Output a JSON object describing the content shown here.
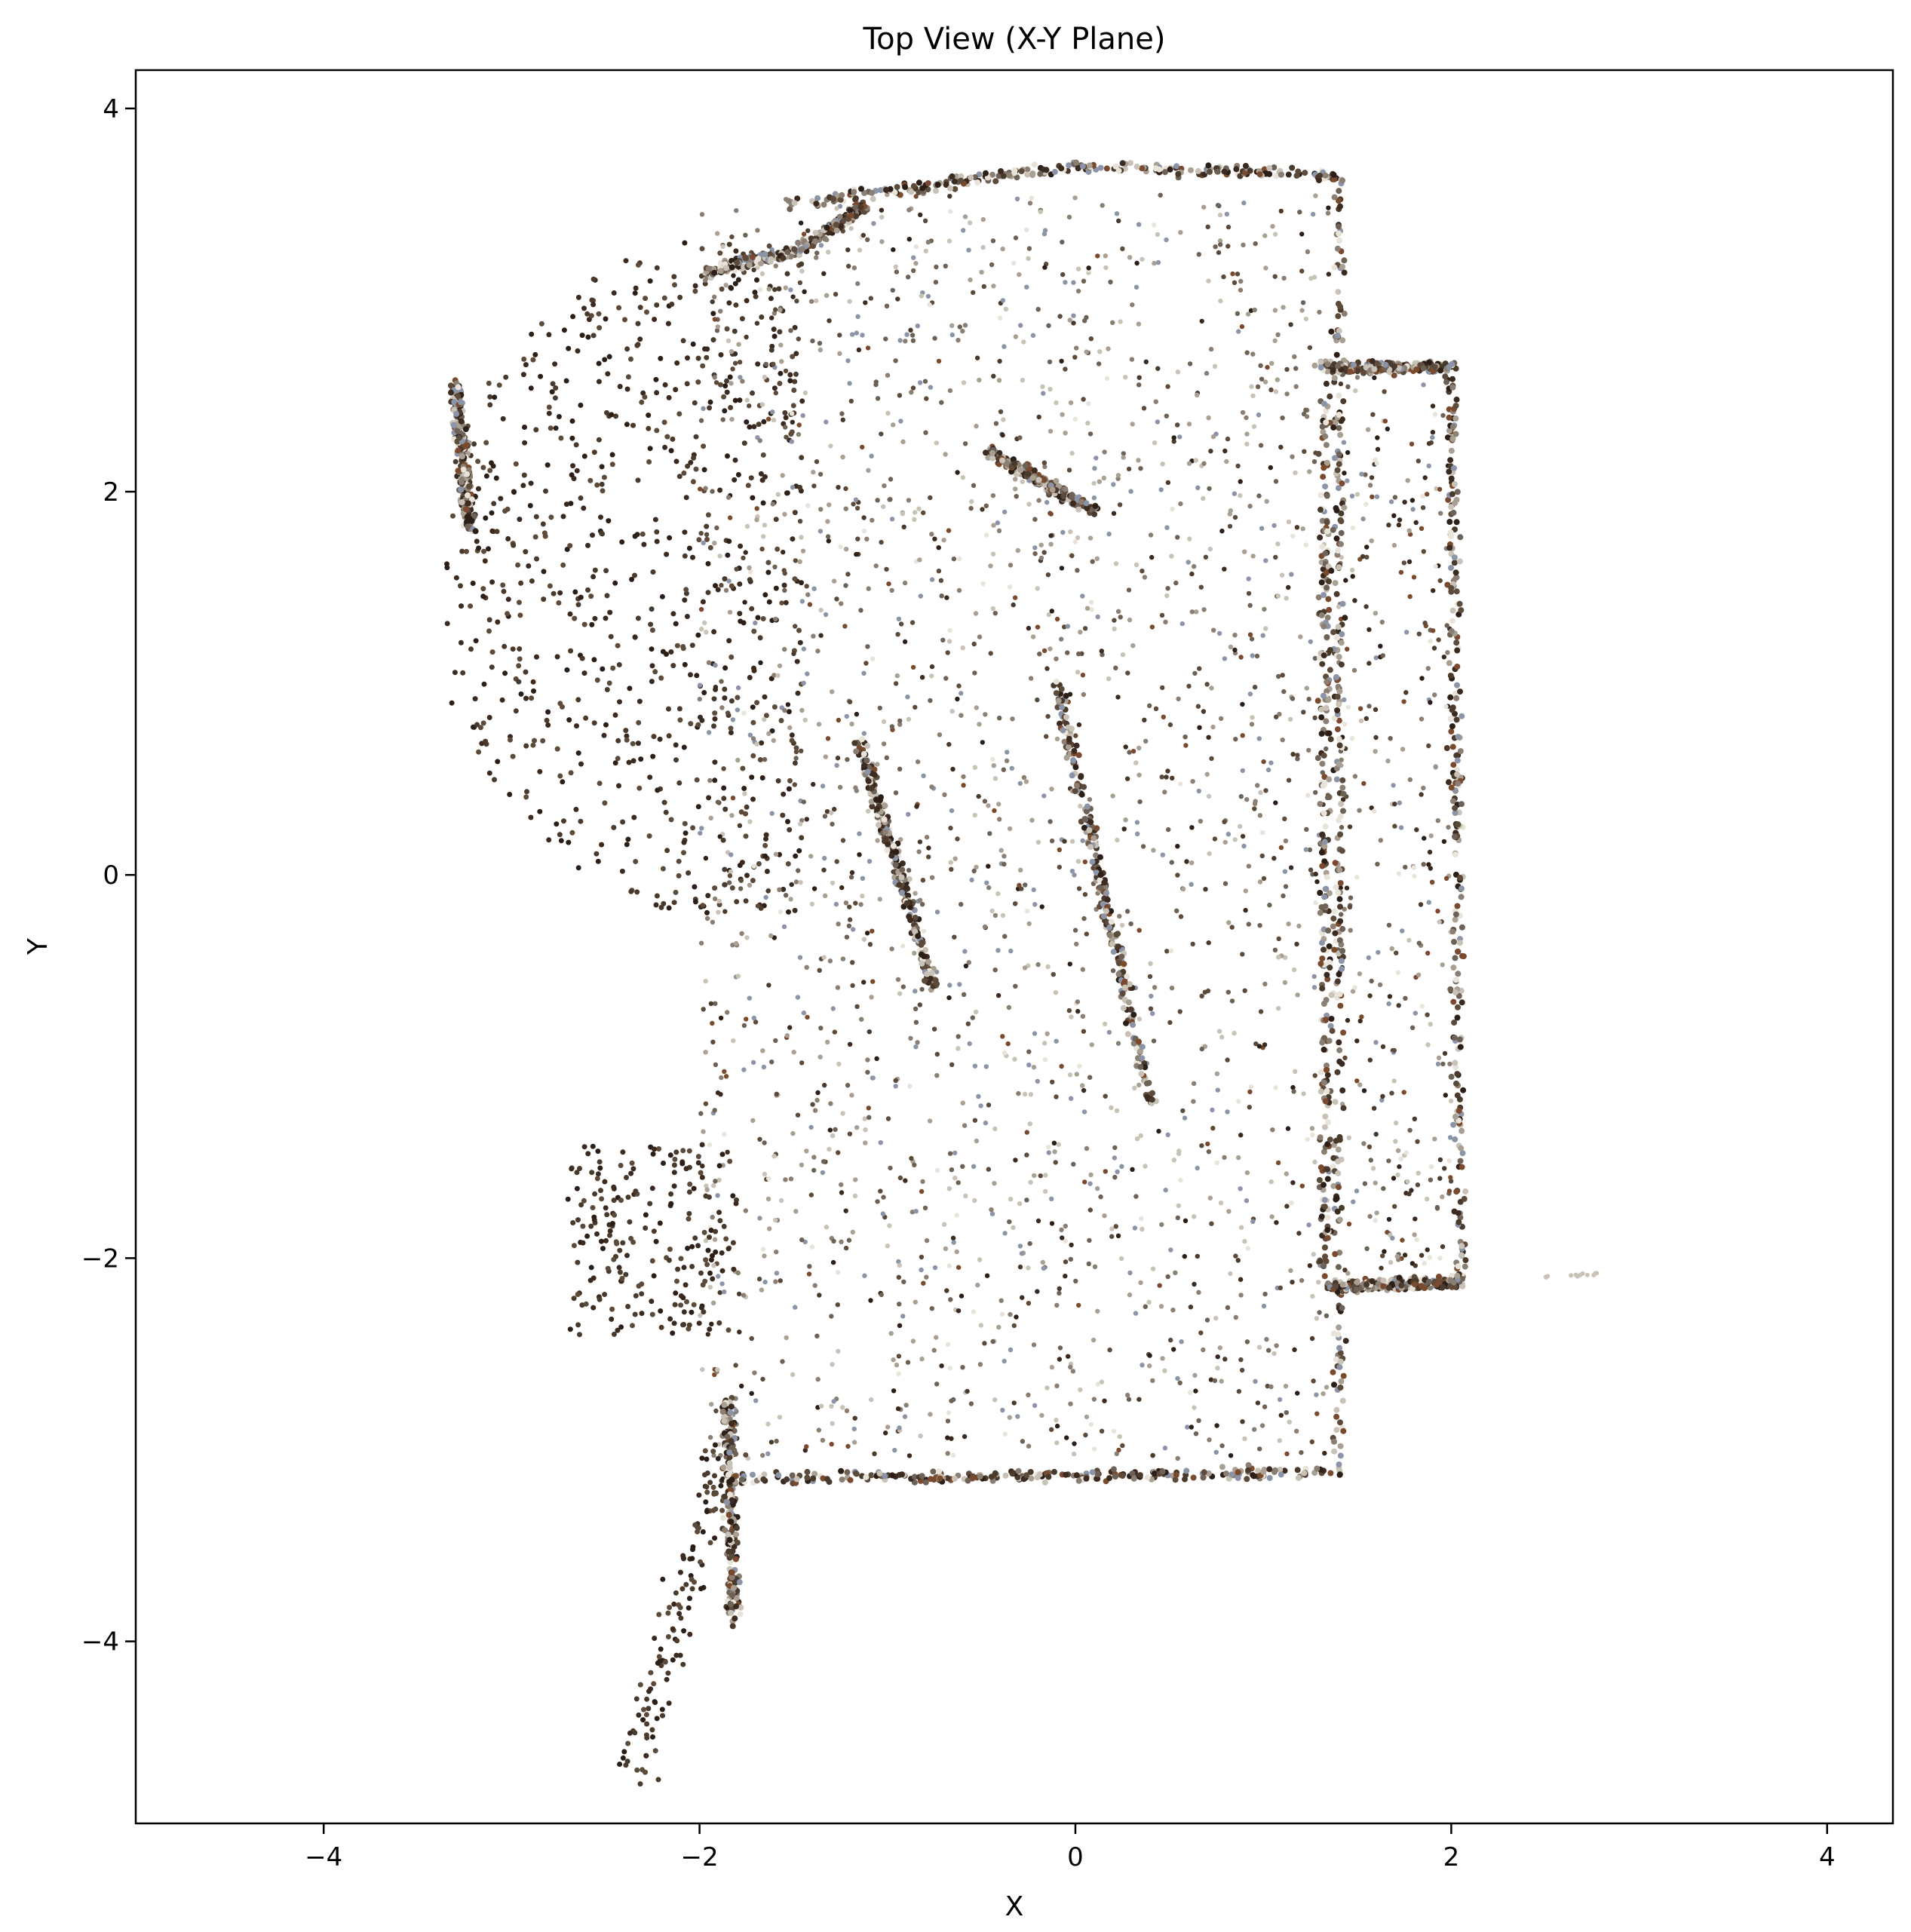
{
  "chart_data": {
    "type": "scatter",
    "title": "Top View (X-Y Plane)",
    "xlabel": "X",
    "ylabel": "Y",
    "xlim": [
      -5.0,
      4.35
    ],
    "ylim": [
      -4.95,
      4.2
    ],
    "xticks": [
      -4,
      -2,
      0,
      2,
      4
    ],
    "yticks": [
      -4,
      -2,
      0,
      2,
      4
    ],
    "xtick_labels": [
      "−4",
      "−2",
      "0",
      "2",
      "4"
    ],
    "ytick_labels": [
      "−4",
      "−2",
      "0",
      "2",
      "4"
    ],
    "grid": false,
    "legend": "none",
    "marker_colors": [
      "#2b1f18",
      "#3b2a20",
      "#4a3a2c",
      "#5c4a3a",
      "#6e6256",
      "#8a7f72",
      "#a99f92",
      "#c9c2b6",
      "#8c94a8",
      "#7a4a2e",
      "#e9e4da"
    ],
    "series": [
      {
        "description": "point cloud projected to X-Y plane",
        "walls": [
          {
            "x": [
              -1.55,
              0.0,
              1.4
            ],
            "y": [
              3.5,
              3.7,
              3.65
            ]
          },
          {
            "x": [
              -1.95,
              -1.5,
              -1.1
            ],
            "y": [
              3.15,
              3.25,
              3.5
            ]
          },
          {
            "x": [
              1.4,
              1.4
            ],
            "y": [
              3.65,
              -3.1
            ]
          },
          {
            "x": [
              -1.85,
              1.4
            ],
            "y": [
              -3.15,
              -3.12
            ]
          },
          {
            "x": [
              -1.85,
              -1.82
            ],
            "y": [
              -2.75,
              -3.9
            ]
          },
          {
            "x": [
              1.3,
              2.0
            ],
            "y": [
              2.65,
              2.65
            ]
          },
          {
            "x": [
              1.33,
              1.33
            ],
            "y": [
              2.6,
              -2.1
            ]
          },
          {
            "x": [
              2.0,
              2.05
            ],
            "y": [
              2.65,
              -2.15
            ]
          },
          {
            "x": [
              1.35,
              2.05
            ],
            "y": [
              -2.15,
              -2.12
            ]
          },
          {
            "x": [
              -3.3,
              -3.22
            ],
            "y": [
              2.55,
              1.8
            ]
          },
          {
            "x": [
              -1.15,
              -0.75
            ],
            "y": [
              0.7,
              -0.6
            ]
          },
          {
            "x": [
              -0.1,
              0.4
            ],
            "y": [
              1.0,
              -1.2
            ]
          },
          {
            "x": [
              -0.45,
              0.1
            ],
            "y": [
              2.2,
              1.9
            ]
          }
        ],
        "isolated": [
          {
            "x": [
              2.5,
              2.8
            ],
            "y": [
              -2.1,
              -2.08
            ]
          }
        ]
      }
    ]
  }
}
